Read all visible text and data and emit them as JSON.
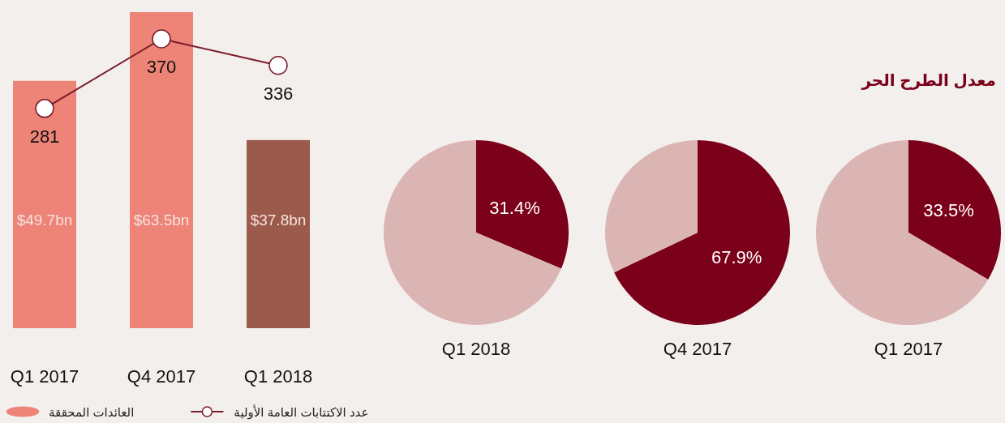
{
  "chart_data": [
    {
      "type": "bar",
      "categories": [
        "Q1 2017",
        "Q4 2017",
        "Q1 2018"
      ],
      "series": [
        {
          "name": "العائدات المحققة",
          "type": "bar",
          "colors": [
            "#ee8377",
            "#ee8377",
            "#9c5a4c"
          ],
          "values": [
            49.7,
            63.5,
            37.8
          ],
          "value_labels": [
            "$49.7bn",
            "$63.5bn",
            "$37.8bn"
          ]
        },
        {
          "name": "عدد الاكتتابات العامة الأولية",
          "type": "line",
          "axis": "y2",
          "color": "#7a1a2a",
          "values": [
            281,
            370,
            336
          ],
          "value_labels": [
            "281",
            "370",
            "336"
          ]
        }
      ],
      "marker": "circle",
      "legend": "bottom",
      "tick_labels": "x"
    },
    {
      "type": "pie",
      "xlabel": "Q1 2018",
      "categories": [
        null,
        null
      ],
      "values": [
        31.4,
        68.6
      ],
      "colors": [
        "#7b0019",
        "#dbb5b4"
      ],
      "value_labels": [
        "31.4%",
        null
      ]
    },
    {
      "type": "pie",
      "xlabel": "Q4 2017",
      "categories": [
        null,
        null
      ],
      "values": [
        67.9,
        32.1
      ],
      "colors": [
        "#7b0019",
        "#dbb5b4"
      ],
      "value_labels": [
        "67.9%",
        null
      ]
    },
    {
      "type": "pie",
      "title": "معدل الطرح الحر",
      "xlabel": "Q1 2017",
      "categories": [
        null,
        null
      ],
      "values": [
        33.5,
        66.5
      ],
      "colors": [
        "#7b0019",
        "#dbb5b4"
      ],
      "value_labels": [
        "33.5%",
        null
      ]
    }
  ]
}
